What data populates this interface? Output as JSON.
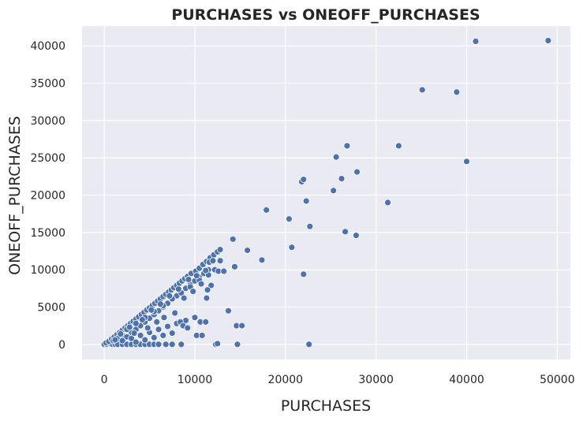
{
  "chart_data": {
    "type": "scatter",
    "title": "PURCHASES vs ONEOFF_PURCHASES",
    "xlabel": "PURCHASES",
    "ylabel": "ONEOFF_PURCHASES",
    "xlim": [
      -2450,
      51450
    ],
    "ylim": [
      -2030,
      42650
    ],
    "xticks": [
      0,
      10000,
      20000,
      30000,
      40000,
      50000
    ],
    "yticks": [
      0,
      5000,
      10000,
      15000,
      20000,
      25000,
      30000,
      35000,
      40000
    ],
    "grid": true,
    "colors": {
      "background": "#eaeaf2",
      "grid": "#ffffff",
      "marker": "#4c72b0"
    },
    "points": [
      [
        0,
        0
      ],
      [
        300,
        0
      ],
      [
        600,
        100
      ],
      [
        900,
        0
      ],
      [
        1200,
        0
      ],
      [
        1500,
        0
      ],
      [
        2000,
        0
      ],
      [
        2500,
        0
      ],
      [
        3000,
        0
      ],
      [
        3500,
        0
      ],
      [
        4000,
        0
      ],
      [
        4500,
        0
      ],
      [
        5000,
        0
      ],
      [
        5500,
        0
      ],
      [
        6000,
        0
      ],
      [
        6800,
        0
      ],
      [
        7500,
        0
      ],
      [
        8500,
        0
      ],
      [
        12300,
        0
      ],
      [
        12500,
        100
      ],
      [
        14700,
        0
      ],
      [
        22600,
        0
      ],
      [
        200,
        200
      ],
      [
        500,
        400
      ],
      [
        800,
        700
      ],
      [
        1100,
        1000
      ],
      [
        1400,
        1300
      ],
      [
        1700,
        1600
      ],
      [
        2000,
        1900
      ],
      [
        2300,
        2200
      ],
      [
        2600,
        2500
      ],
      [
        2900,
        2800
      ],
      [
        3200,
        3100
      ],
      [
        3500,
        3400
      ],
      [
        3800,
        3700
      ],
      [
        4100,
        4000
      ],
      [
        4400,
        4300
      ],
      [
        4700,
        4600
      ],
      [
        5000,
        4900
      ],
      [
        5300,
        5200
      ],
      [
        5600,
        5500
      ],
      [
        5900,
        5800
      ],
      [
        6200,
        6100
      ],
      [
        6500,
        6400
      ],
      [
        6800,
        6700
      ],
      [
        7100,
        7000
      ],
      [
        7400,
        7300
      ],
      [
        7700,
        7600
      ],
      [
        8000,
        7900
      ],
      [
        8300,
        8200
      ],
      [
        8600,
        8500
      ],
      [
        8900,
        8800
      ],
      [
        9200,
        9100
      ],
      [
        9600,
        9500
      ],
      [
        10100,
        9800
      ],
      [
        10500,
        10200
      ],
      [
        10900,
        10700
      ],
      [
        11300,
        11100
      ],
      [
        11700,
        11600
      ],
      [
        12100,
        12000
      ],
      [
        12500,
        12400
      ],
      [
        12800,
        12700
      ],
      [
        1000,
        500
      ],
      [
        1500,
        800
      ],
      [
        2000,
        1200
      ],
      [
        2500,
        1000
      ],
      [
        3000,
        1600
      ],
      [
        3500,
        2000
      ],
      [
        4000,
        2500
      ],
      [
        4500,
        3000
      ],
      [
        5000,
        3500
      ],
      [
        5500,
        4000
      ],
      [
        6000,
        4500
      ],
      [
        6500,
        5000
      ],
      [
        7000,
        5500
      ],
      [
        7500,
        6000
      ],
      [
        8000,
        6500
      ],
      [
        8500,
        7000
      ],
      [
        9000,
        7500
      ],
      [
        9500,
        8000
      ],
      [
        10000,
        8500
      ],
      [
        10500,
        9000
      ],
      [
        11000,
        9500
      ],
      [
        11500,
        10000
      ],
      [
        2000,
        500
      ],
      [
        3000,
        800
      ],
      [
        4000,
        1200
      ],
      [
        5000,
        1600
      ],
      [
        6000,
        2000
      ],
      [
        7000,
        2400
      ],
      [
        8000,
        2800
      ],
      [
        9000,
        3200
      ],
      [
        10000,
        3600
      ],
      [
        3500,
        300
      ],
      [
        4500,
        600
      ],
      [
        5500,
        900
      ],
      [
        6500,
        1200
      ],
      [
        7500,
        1500
      ],
      [
        2500,
        2000
      ],
      [
        3500,
        2800
      ],
      [
        4500,
        3600
      ],
      [
        5500,
        4400
      ],
      [
        6500,
        5200
      ],
      [
        7500,
        6100
      ],
      [
        8500,
        6900
      ],
      [
        9500,
        7700
      ],
      [
        10500,
        8600
      ],
      [
        11500,
        9300
      ],
      [
        1200,
        600
      ],
      [
        1800,
        1400
      ],
      [
        2800,
        2300
      ],
      [
        3300,
        1500
      ],
      [
        4200,
        3300
      ],
      [
        4800,
        2200
      ],
      [
        5200,
        4600
      ],
      [
        5800,
        3000
      ],
      [
        6200,
        5400
      ],
      [
        6600,
        3600
      ],
      [
        7200,
        6500
      ],
      [
        7800,
        4200
      ],
      [
        8200,
        7400
      ],
      [
        8800,
        6200
      ],
      [
        9300,
        8700
      ],
      [
        9800,
        7100
      ],
      [
        10200,
        9200
      ],
      [
        10700,
        8100
      ],
      [
        11200,
        9900
      ],
      [
        11600,
        11000
      ],
      [
        8400,
        3000
      ],
      [
        8700,
        2500
      ],
      [
        9200,
        2200
      ],
      [
        10200,
        1200
      ],
      [
        10800,
        1200
      ],
      [
        10600,
        3000
      ],
      [
        11200,
        3000
      ],
      [
        11300,
        6200
      ],
      [
        11800,
        7900
      ],
      [
        12200,
        10000
      ],
      [
        12600,
        9800
      ],
      [
        13200,
        9800
      ],
      [
        11400,
        7300
      ],
      [
        12000,
        11200
      ],
      [
        12800,
        11200
      ],
      [
        13700,
        4500
      ],
      [
        14200,
        14100
      ],
      [
        14400,
        10400
      ],
      [
        14600,
        2500
      ],
      [
        15200,
        2500
      ],
      [
        15800,
        12600
      ],
      [
        17400,
        11300
      ],
      [
        17900,
        18000
      ],
      [
        20400,
        16800
      ],
      [
        20700,
        13000
      ],
      [
        21800,
        21800
      ],
      [
        22000,
        22100
      ],
      [
        22300,
        19200
      ],
      [
        22700,
        15800
      ],
      [
        22000,
        9400
      ],
      [
        25300,
        20600
      ],
      [
        25600,
        25100
      ],
      [
        26200,
        22200
      ],
      [
        26600,
        15100
      ],
      [
        26800,
        26600
      ],
      [
        27800,
        14600
      ],
      [
        27900,
        23100
      ],
      [
        31300,
        19000
      ],
      [
        32500,
        26600
      ],
      [
        35100,
        34100
      ],
      [
        38900,
        33800
      ],
      [
        40000,
        24500
      ],
      [
        41000,
        40600
      ],
      [
        49000,
        40700
      ]
    ]
  }
}
